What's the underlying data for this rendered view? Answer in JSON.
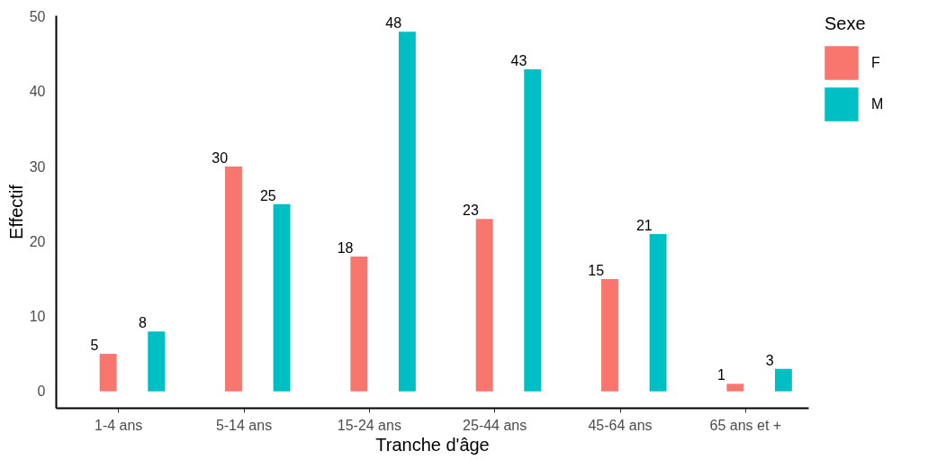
{
  "chart_data": {
    "type": "bar",
    "xlabel": "Tranche d'âge",
    "ylabel": "Effectif",
    "legend_title": "Sexe",
    "categories": [
      "1-4 ans",
      "5-14 ans",
      "15-24 ans",
      "25-44 ans",
      "45-64 ans",
      "65 ans et +"
    ],
    "series": [
      {
        "name": "F",
        "color": "#f8766d",
        "values": [
          5,
          30,
          18,
          23,
          15,
          1
        ]
      },
      {
        "name": "M",
        "color": "#00bfc4",
        "values": [
          8,
          25,
          48,
          43,
          21,
          3
        ]
      }
    ],
    "ylim": [
      -2.2,
      50.2
    ],
    "yticks": [
      0,
      10,
      20,
      30,
      40,
      50
    ],
    "grid": false,
    "legend": "right",
    "data_labels": true
  }
}
